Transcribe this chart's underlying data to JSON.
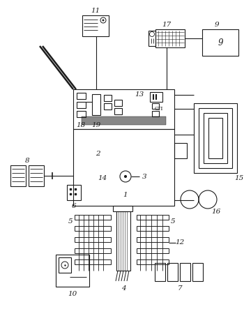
{
  "bg": "#ffffff",
  "lc": "#1c1c1c",
  "figsize": [
    3.6,
    4.43
  ],
  "dpi": 100,
  "fs": 7.5,
  "lw": 0.8
}
